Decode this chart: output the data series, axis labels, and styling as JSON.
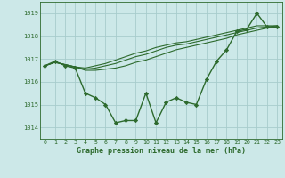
{
  "title": "Graphe pression niveau de la mer (hPa)",
  "background_color": "#cce8e8",
  "line_color": "#2d6a2d",
  "grid_color": "#a8cccc",
  "xlim": [
    -0.5,
    23.5
  ],
  "ylim": [
    1013.5,
    1019.5
  ],
  "yticks": [
    1014,
    1015,
    1016,
    1017,
    1018,
    1019
  ],
  "xticks": [
    0,
    1,
    2,
    3,
    4,
    5,
    6,
    7,
    8,
    9,
    10,
    11,
    12,
    13,
    14,
    15,
    16,
    17,
    18,
    19,
    20,
    21,
    22,
    23
  ],
  "series": [
    [
      1016.7,
      1016.9,
      1016.7,
      1016.6,
      1015.5,
      1015.3,
      1015.0,
      1014.2,
      1014.3,
      1014.3,
      1015.5,
      1014.2,
      1015.1,
      1015.3,
      1015.1,
      1015.0,
      1016.1,
      1016.9,
      1017.4,
      1018.2,
      1018.3,
      1019.0,
      1018.4,
      1018.4
    ],
    [
      1016.7,
      1016.85,
      1016.75,
      1016.65,
      1016.5,
      1016.5,
      1016.55,
      1016.6,
      1016.7,
      1016.85,
      1016.95,
      1017.1,
      1017.25,
      1017.4,
      1017.5,
      1017.6,
      1017.7,
      1017.8,
      1017.9,
      1018.05,
      1018.15,
      1018.25,
      1018.35,
      1018.4
    ],
    [
      1016.7,
      1016.85,
      1016.75,
      1016.65,
      1016.55,
      1016.6,
      1016.7,
      1016.8,
      1016.95,
      1017.1,
      1017.2,
      1017.35,
      1017.5,
      1017.6,
      1017.65,
      1017.75,
      1017.85,
      1017.95,
      1018.05,
      1018.15,
      1018.25,
      1018.35,
      1018.4,
      1018.45
    ],
    [
      1016.7,
      1016.85,
      1016.75,
      1016.65,
      1016.6,
      1016.7,
      1016.8,
      1016.95,
      1017.1,
      1017.25,
      1017.35,
      1017.5,
      1017.6,
      1017.7,
      1017.75,
      1017.85,
      1017.95,
      1018.05,
      1018.15,
      1018.25,
      1018.35,
      1018.45,
      1018.45,
      1018.45
    ]
  ]
}
